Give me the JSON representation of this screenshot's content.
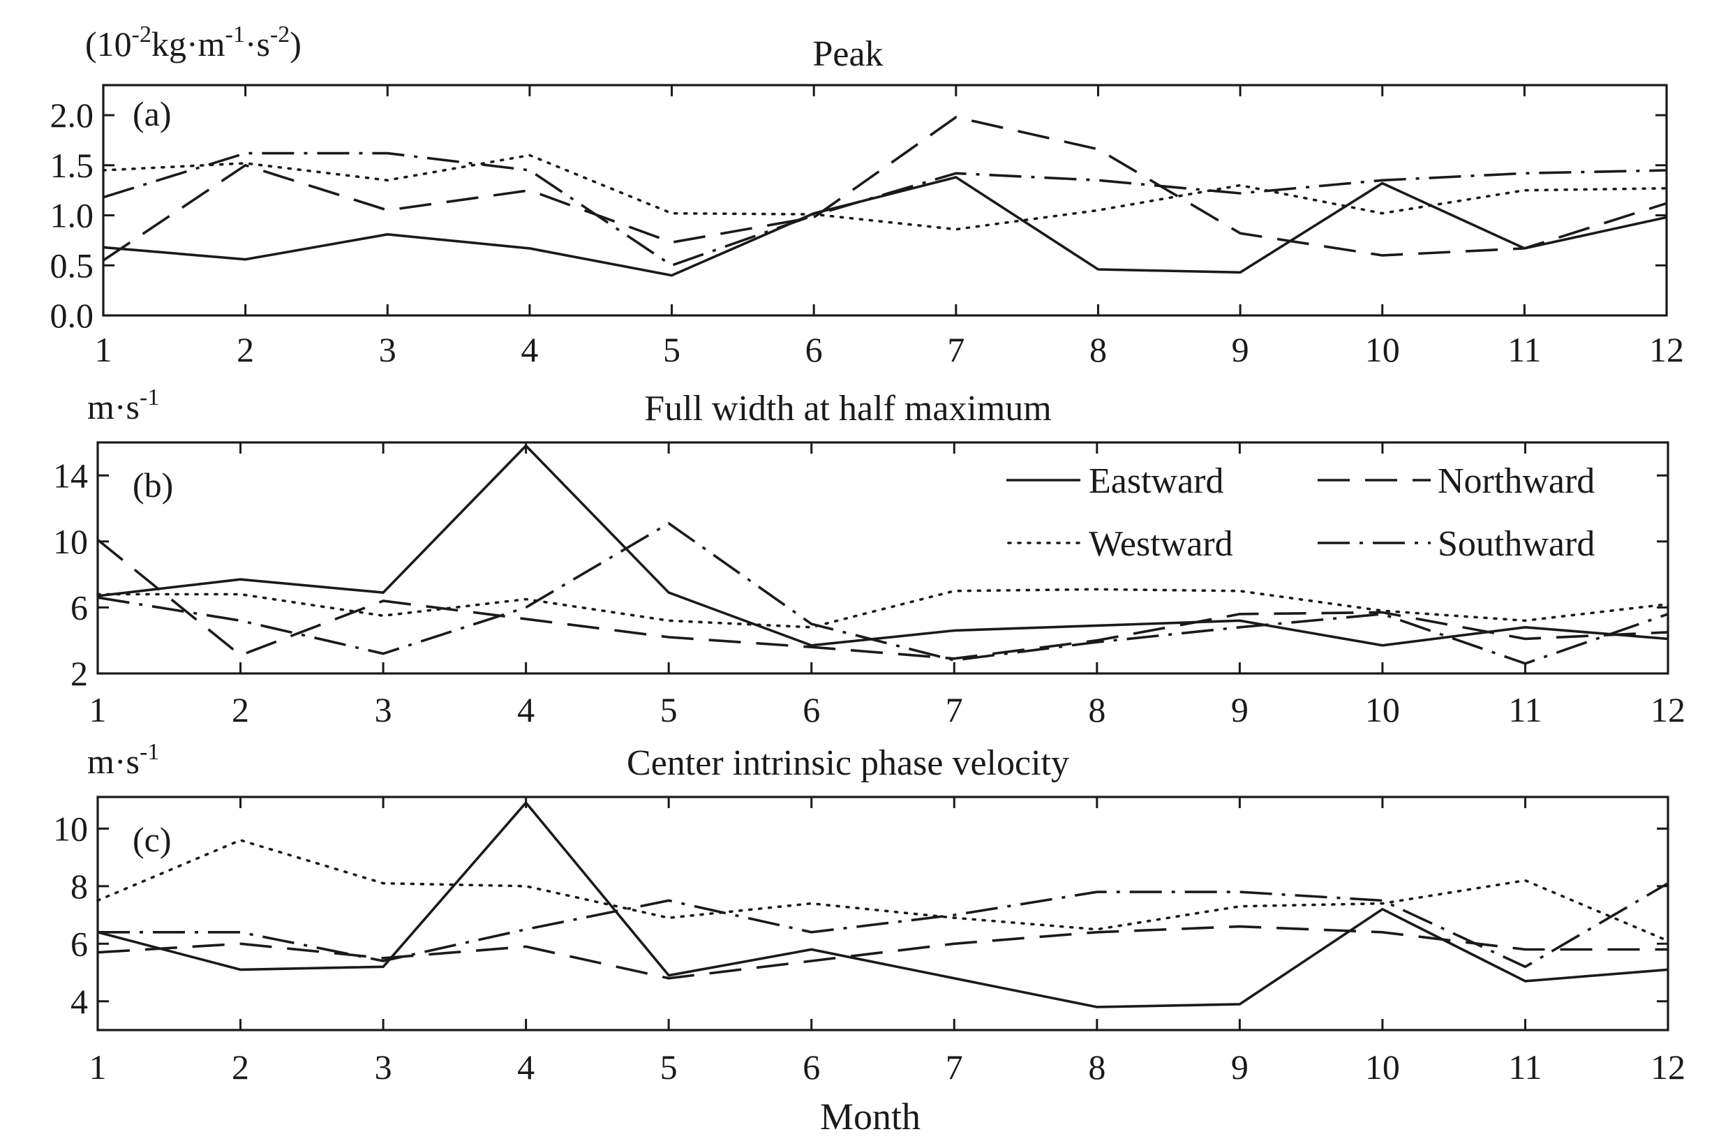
{
  "chart_data": [
    {
      "type": "line",
      "panel_label": "(a)",
      "title": "Peak",
      "unit_label": {
        "prefix": "(10",
        "exp1": "-2",
        "mid1": "kg·m",
        "exp2": "-1",
        "mid2": "·s",
        "exp3": "-2",
        "suffix": ")"
      },
      "xlabel": "",
      "x": [
        1,
        2,
        3,
        4,
        5,
        6,
        7,
        8,
        9,
        10,
        11,
        12
      ],
      "x_tick_labels": [
        "1",
        "2",
        "3",
        "4",
        "5",
        "6",
        "7",
        "8",
        "9",
        "10",
        "11",
        "12"
      ],
      "ylim": [
        0.0,
        2.3
      ],
      "y_ticks": [
        0.0,
        0.5,
        1.0,
        1.5,
        2.0
      ],
      "y_tick_labels": [
        "0.0",
        "0.5",
        "1.0",
        "1.5",
        "2.0"
      ],
      "series": [
        {
          "name": "Eastward",
          "style": "solid",
          "values": [
            0.68,
            0.56,
            0.81,
            0.67,
            0.4,
            1.02,
            1.38,
            0.46,
            0.43,
            1.32,
            0.67,
            0.98
          ]
        },
        {
          "name": "Westward",
          "style": "dotted",
          "values": [
            1.45,
            1.52,
            1.35,
            1.6,
            1.02,
            1.01,
            0.86,
            1.05,
            1.3,
            1.02,
            1.25,
            1.27
          ]
        },
        {
          "name": "Northward",
          "style": "dashed",
          "values": [
            0.55,
            1.5,
            1.05,
            1.25,
            0.73,
            0.98,
            1.98,
            1.66,
            0.82,
            0.6,
            0.67,
            1.12
          ]
        },
        {
          "name": "Southward",
          "style": "dash-dot",
          "values": [
            1.18,
            1.62,
            1.62,
            1.45,
            0.5,
            1.0,
            1.42,
            1.35,
            1.22,
            1.35,
            1.42,
            1.45
          ]
        }
      ]
    },
    {
      "type": "line",
      "panel_label": "(b)",
      "title": "Full width at half maximum",
      "unit_label": {
        "prefix": "m·s",
        "exp1": "-1"
      },
      "xlabel": "",
      "x": [
        1,
        2,
        3,
        4,
        5,
        6,
        7,
        8,
        9,
        10,
        11,
        12
      ],
      "x_tick_labels": [
        "1",
        "2",
        "3",
        "4",
        "5",
        "6",
        "7",
        "8",
        "9",
        "10",
        "11",
        "12"
      ],
      "ylim": [
        2,
        16
      ],
      "y_ticks": [
        2,
        6,
        10,
        14
      ],
      "y_tick_labels": [
        "2",
        "6",
        "10",
        "14"
      ],
      "series": [
        {
          "name": "Eastward",
          "style": "solid",
          "values": [
            6.7,
            7.7,
            6.9,
            15.8,
            6.9,
            3.7,
            4.6,
            4.9,
            5.2,
            3.7,
            4.8,
            4.1
          ]
        },
        {
          "name": "Westward",
          "style": "dotted",
          "values": [
            6.8,
            6.8,
            5.5,
            6.5,
            5.2,
            4.8,
            7.0,
            7.1,
            7.0,
            5.8,
            5.2,
            6.2
          ]
        },
        {
          "name": "Northward",
          "style": "dashed",
          "values": [
            10.1,
            3.1,
            6.4,
            5.3,
            4.2,
            3.6,
            2.9,
            4.0,
            5.6,
            5.7,
            4.1,
            4.5
          ]
        },
        {
          "name": "Southward",
          "style": "dash-dot",
          "values": [
            6.6,
            5.2,
            3.2,
            6.0,
            11.1,
            5.0,
            2.8,
            3.9,
            4.8,
            5.6,
            2.6,
            5.6
          ]
        }
      ],
      "legend": {
        "position": "top-right",
        "entries": [
          "Eastward",
          "Northward",
          "Westward",
          "Southward"
        ]
      }
    },
    {
      "type": "line",
      "panel_label": "(c)",
      "title": "Center intrinsic phase velocity",
      "unit_label": {
        "prefix": "m·s",
        "exp1": "-1"
      },
      "xlabel": "Month",
      "x": [
        1,
        2,
        3,
        4,
        5,
        6,
        7,
        8,
        9,
        10,
        11,
        12
      ],
      "x_tick_labels": [
        "1",
        "2",
        "3",
        "4",
        "5",
        "6",
        "7",
        "8",
        "9",
        "10",
        "11",
        "12"
      ],
      "ylim": [
        3.0,
        11.1
      ],
      "y_ticks": [
        4,
        6,
        8,
        10
      ],
      "y_tick_labels": [
        "4",
        "6",
        "8",
        "10"
      ],
      "series": [
        {
          "name": "Eastward",
          "style": "solid",
          "values": [
            6.4,
            5.1,
            5.2,
            10.9,
            4.9,
            5.8,
            4.8,
            3.8,
            3.9,
            7.2,
            4.7,
            5.1
          ]
        },
        {
          "name": "Westward",
          "style": "dotted",
          "values": [
            7.5,
            9.6,
            8.1,
            8.0,
            6.9,
            7.4,
            6.9,
            6.5,
            7.3,
            7.4,
            8.2,
            6.1
          ]
        },
        {
          "name": "Northward",
          "style": "dashed",
          "values": [
            5.7,
            6.0,
            5.5,
            5.9,
            4.8,
            5.4,
            6.0,
            6.4,
            6.6,
            6.4,
            5.8,
            5.8
          ]
        },
        {
          "name": "Southward",
          "style": "dash-dot",
          "values": [
            6.4,
            6.4,
            5.4,
            6.5,
            7.5,
            6.4,
            7.0,
            7.8,
            7.8,
            7.5,
            5.2,
            8.1
          ]
        }
      ]
    }
  ]
}
